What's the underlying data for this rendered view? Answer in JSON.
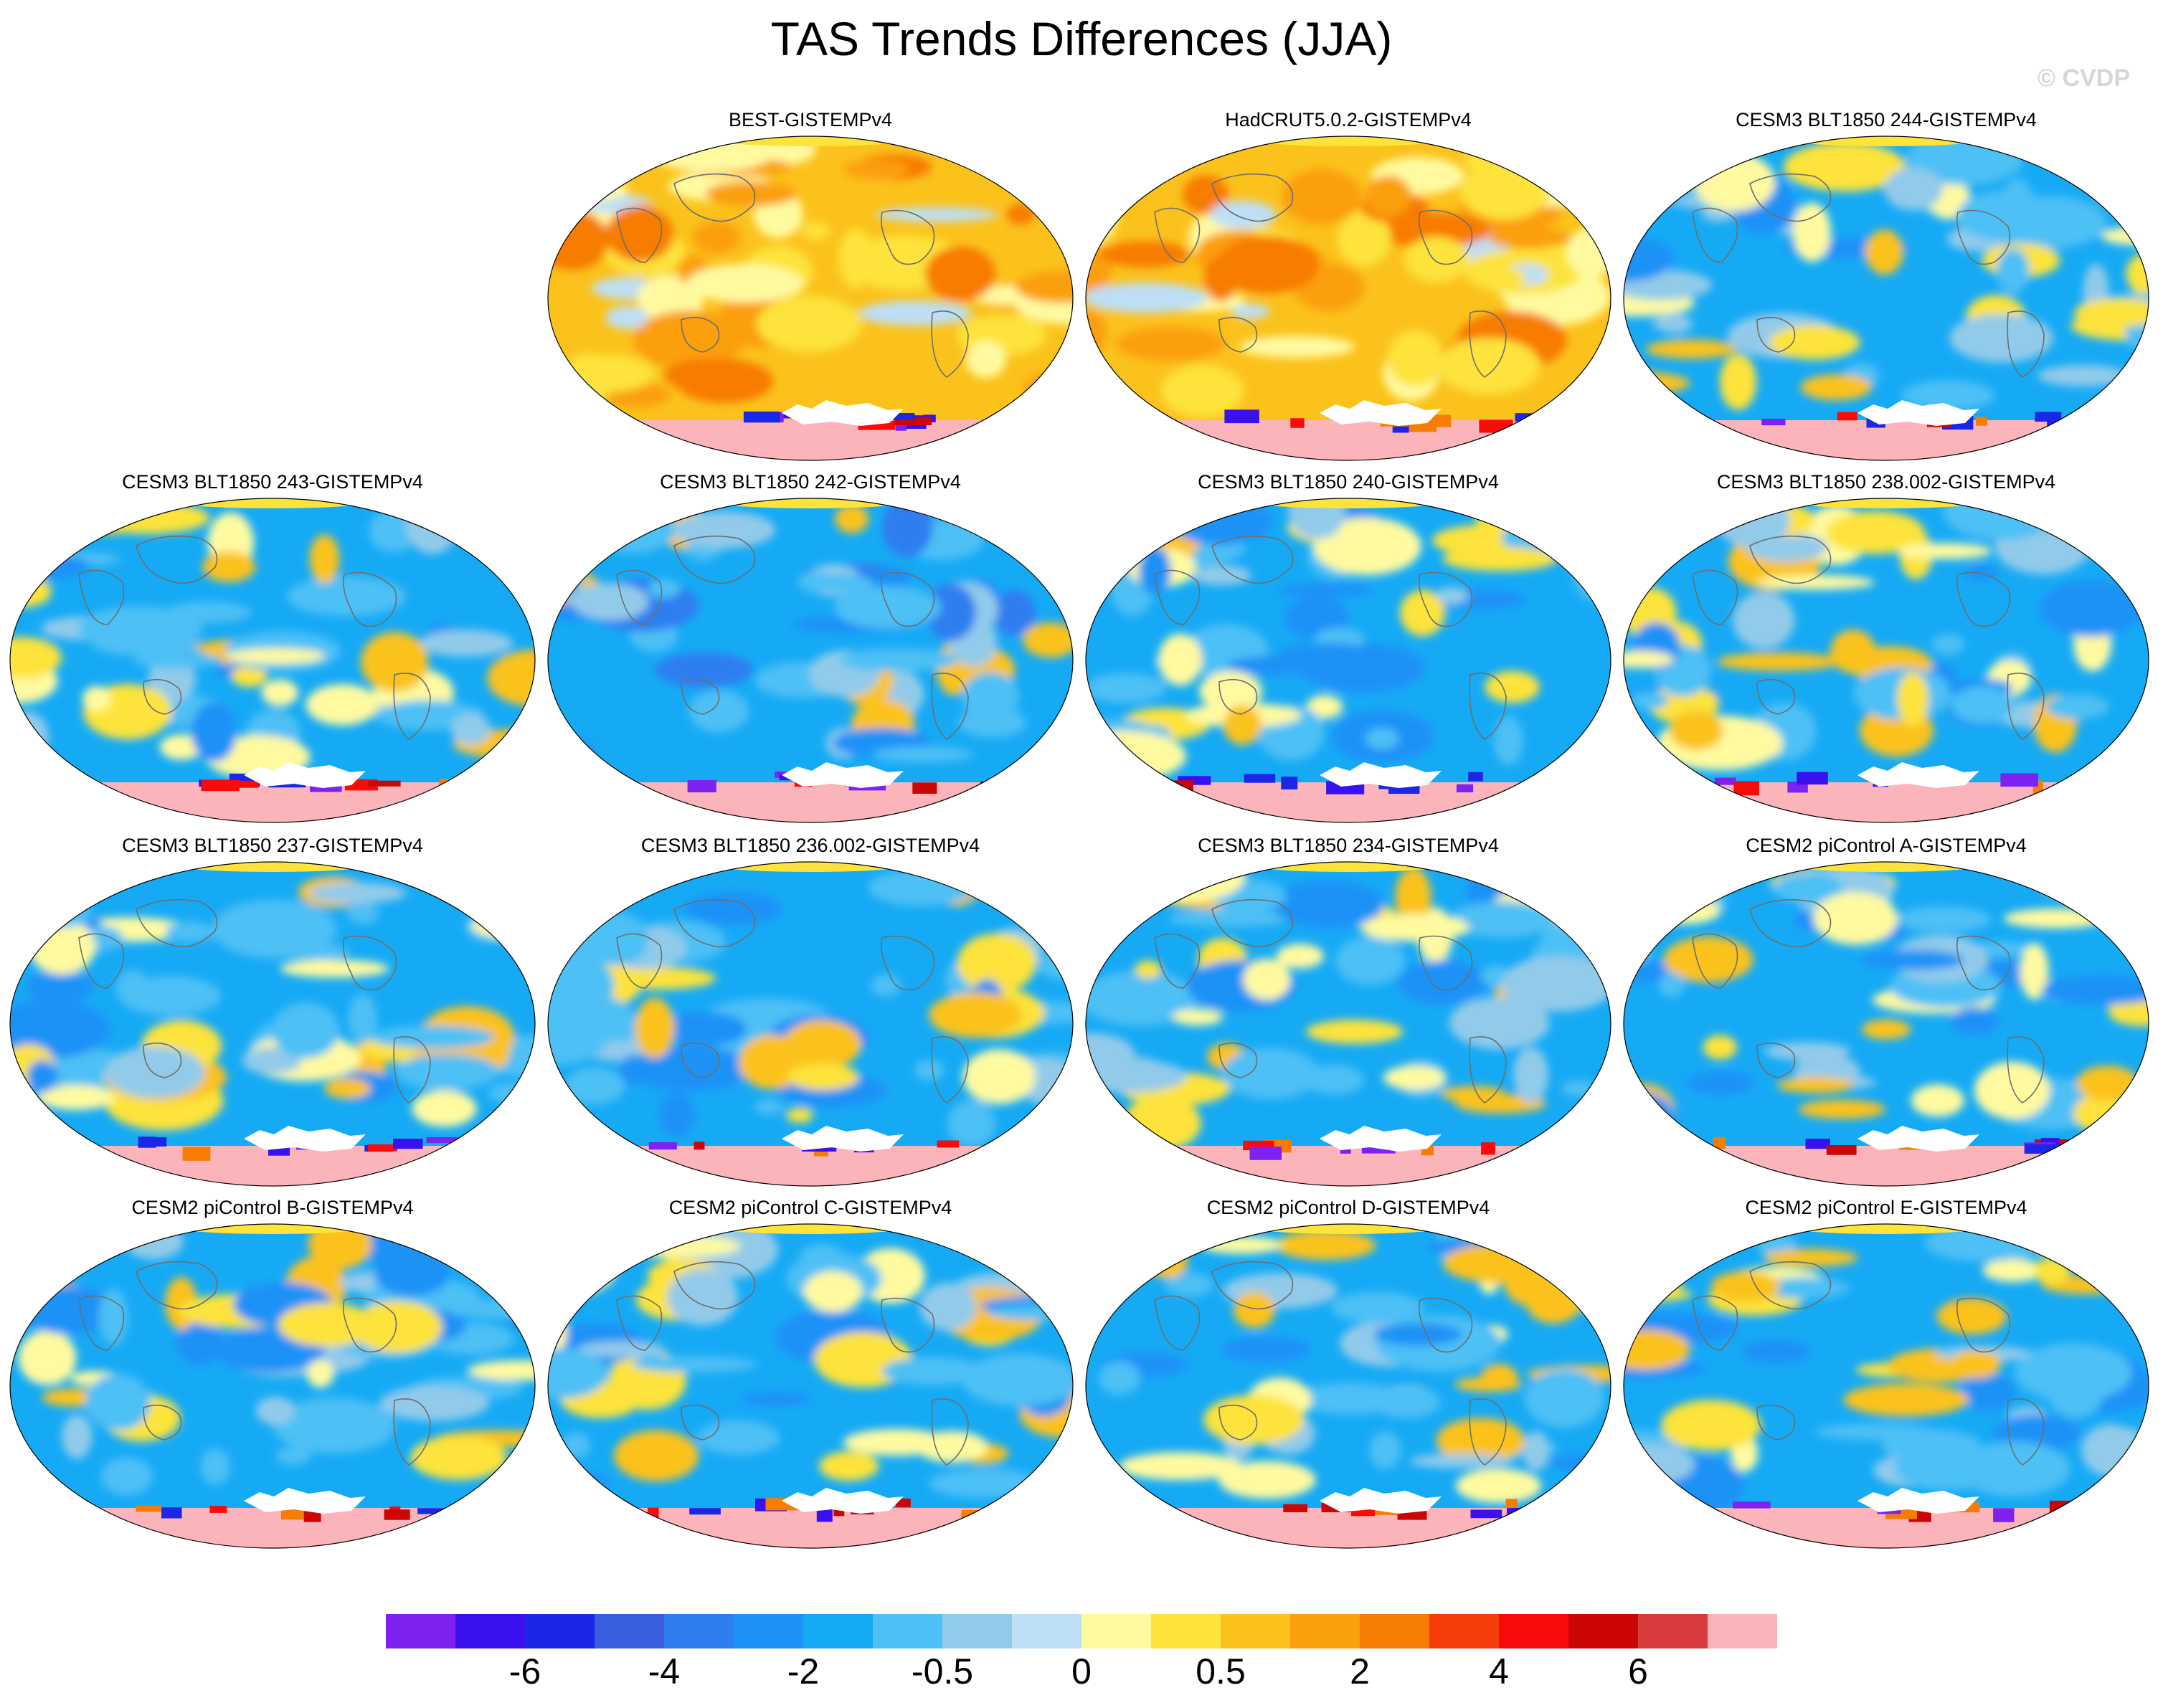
{
  "title": "TAS Trends Differences (JJA)",
  "copyright": "© CVDP",
  "colors": {
    "palette": [
      "#7d22f0",
      "#3a10ee",
      "#1a28e6",
      "#3a5ee0",
      "#2f7ef0",
      "#1e92f7",
      "#16aaf5",
      "#4ec0f5",
      "#92cbea",
      "#bddff5",
      "#fffaa0",
      "#fde33a",
      "#fbc21c",
      "#fb9f0a",
      "#f77c04",
      "#f53d0a",
      "#fb0a0a",
      "#cc0505",
      "#d83c3c",
      "#fbb4b9"
    ],
    "antarctic": "#fbb4b9",
    "coast": "#6e6e6e"
  },
  "panels": [
    {
      "title": "BEST-GISTEMPv4",
      "theme": "warm"
    },
    {
      "title": "HadCRUT5.0.2-GISTEMPv4",
      "theme": "warm"
    },
    {
      "title": "CESM3 BLT1850 244-GISTEMPv4",
      "theme": "cool"
    },
    {
      "title": "CESM3 BLT1850 243-GISTEMPv4",
      "theme": "cool"
    },
    {
      "title": "CESM3 BLT1850 242-GISTEMPv4",
      "theme": "cold"
    },
    {
      "title": "CESM3 BLT1850 240-GISTEMPv4",
      "theme": "cool"
    },
    {
      "title": "CESM3 BLT1850 238.002-GISTEMPv4",
      "theme": "cool"
    },
    {
      "title": "CESM3 BLT1850 237-GISTEMPv4",
      "theme": "cool"
    },
    {
      "title": "CESM3 BLT1850 236.002-GISTEMPv4",
      "theme": "cool"
    },
    {
      "title": "CESM3 BLT1850 234-GISTEMPv4",
      "theme": "cool"
    },
    {
      "title": "CESM2 piControl A-GISTEMPv4",
      "theme": "cool"
    },
    {
      "title": "CESM2 piControl B-GISTEMPv4",
      "theme": "cool"
    },
    {
      "title": "CESM2 piControl C-GISTEMPv4",
      "theme": "cool"
    },
    {
      "title": "CESM2 piControl D-GISTEMPv4",
      "theme": "cool"
    },
    {
      "title": "CESM2 piControl E-GISTEMPv4",
      "theme": "cool"
    }
  ],
  "colorbar": {
    "labels": [
      "-6",
      "-4",
      "-2",
      "-0.5",
      "0",
      "0.5",
      "2",
      "4",
      "6"
    ],
    "boundary_index": [
      2,
      4,
      6,
      8,
      10,
      12,
      14,
      16,
      18
    ]
  }
}
